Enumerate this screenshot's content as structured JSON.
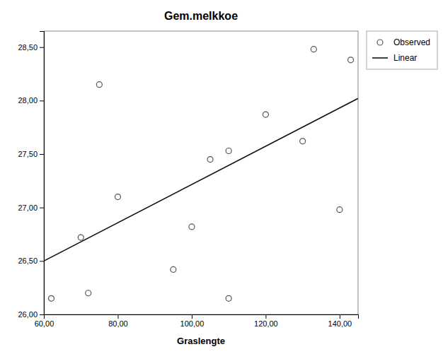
{
  "chart_data": {
    "type": "scatter",
    "title": "Gem.melkkoe",
    "xlabel": "Graslengte",
    "xlim": [
      60,
      145
    ],
    "ylim": [
      26.0,
      28.65
    ],
    "xticks": [
      {
        "value": 60.0,
        "label": "60,00"
      },
      {
        "value": 80.0,
        "label": "80,00"
      },
      {
        "value": 100.0,
        "label": "100,00"
      },
      {
        "value": 120.0,
        "label": "120,00"
      },
      {
        "value": 140.0,
        "label": "140,00"
      }
    ],
    "yticks": [
      {
        "value": 26.0,
        "label": "26,00"
      },
      {
        "value": 26.5,
        "label": "26,50"
      },
      {
        "value": 27.0,
        "label": "27,00"
      },
      {
        "value": 27.5,
        "label": "27,50"
      },
      {
        "value": 28.0,
        "label": "28,00"
      },
      {
        "value": 28.5,
        "label": "28,50"
      }
    ],
    "grid": false,
    "legend": "right",
    "series": [
      {
        "name": "Observed",
        "type": "scatter",
        "color": "#555555",
        "marker": "open-circle",
        "x": [
          62,
          70,
          72,
          75,
          80,
          95,
          100,
          105,
          110,
          110,
          120,
          130,
          133,
          140,
          143
        ],
        "values": [
          26.15,
          26.72,
          26.2,
          28.15,
          27.1,
          26.42,
          26.82,
          27.45,
          26.15,
          27.53,
          27.87,
          27.62,
          28.48,
          26.98,
          28.38
        ]
      },
      {
        "name": "Linear",
        "type": "line",
        "color": "#111111",
        "line_style": "solid",
        "x": [
          60,
          145
        ],
        "values": [
          26.5,
          28.02
        ]
      }
    ]
  }
}
